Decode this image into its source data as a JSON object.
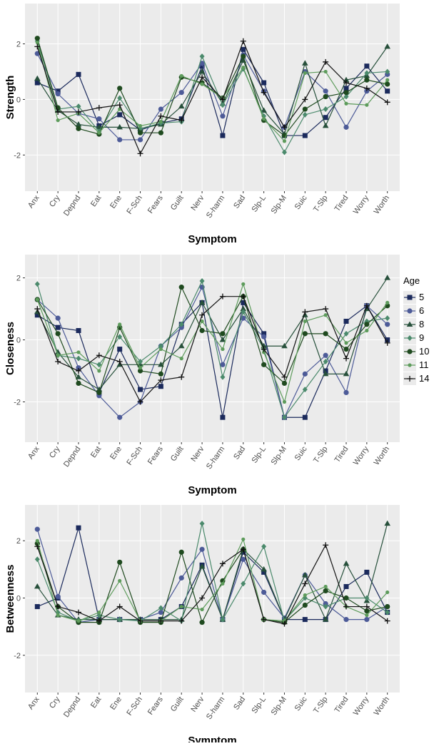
{
  "chart_data": [
    {
      "type": "line",
      "y_label": "Strength",
      "x_label": "Symptom",
      "categories": [
        "Anx",
        "Cry",
        "Depnd",
        "Eat",
        "Ene",
        "F-Sch",
        "Fears",
        "Guilt",
        "Nerv",
        "S-harm",
        "Sad",
        "Slp-L",
        "Slp-M",
        "Suic",
        "T-Slp",
        "Tired",
        "Worry",
        "Worth"
      ],
      "ylim": [
        -3.3,
        3.45
      ],
      "yticks": [
        -2,
        0,
        2
      ],
      "grid": true,
      "series": [
        {
          "color": "#1b2a5c",
          "marker": "square",
          "values": [
            0.6,
            0.3,
            0.9,
            -0.95,
            -0.55,
            -1.1,
            -0.85,
            -0.7,
            1.2,
            -1.3,
            1.8,
            0.6,
            -1.3,
            -1.3,
            -0.65,
            0.4,
            1.2,
            0.3
          ]
        },
        {
          "color": "#4d5b98",
          "marker": "circle",
          "values": [
            1.65,
            0.2,
            -0.5,
            -0.7,
            -1.45,
            -1.45,
            -0.35,
            0.25,
            1.3,
            -0.6,
            1.6,
            0.3,
            -1.0,
            1.0,
            0.3,
            -1.0,
            0.3,
            0.9
          ]
        },
        {
          "color": "#27503b",
          "marker": "triangle",
          "values": [
            0.75,
            -0.4,
            -0.9,
            -1.0,
            -1.0,
            -1.05,
            -0.9,
            -0.25,
            1.0,
            -0.15,
            1.4,
            -0.4,
            -1.25,
            1.3,
            -0.95,
            0.7,
            0.85,
            1.9
          ]
        },
        {
          "color": "#4b8a6c",
          "marker": "diamond",
          "values": [
            2.1,
            -0.35,
            -0.25,
            -1.15,
            0.05,
            -1.05,
            -0.85,
            -0.8,
            1.55,
            -0.2,
            1.1,
            -0.6,
            -1.9,
            -0.55,
            -0.35,
            0.1,
            0.95,
            1.0
          ]
        },
        {
          "color": "#1f4a1f",
          "marker": "circle",
          "values": [
            2.2,
            -0.3,
            -1.05,
            -1.25,
            0.4,
            -1.2,
            -1.2,
            0.8,
            0.6,
            0.05,
            1.55,
            -0.75,
            -1.3,
            -0.35,
            0.1,
            0.25,
            0.7,
            0.55
          ]
        },
        {
          "color": "#5e9c5c",
          "marker": "dot",
          "values": [
            2.05,
            -0.75,
            -0.5,
            -1.2,
            -0.35,
            -0.95,
            -0.8,
            0.85,
            0.55,
            0.05,
            1.15,
            -0.7,
            -1.5,
            0.95,
            1.0,
            -0.15,
            -0.2,
            0.7
          ]
        },
        {
          "color": "#111111",
          "marker": "plus",
          "values": [
            1.9,
            -0.45,
            -0.45,
            -0.3,
            -0.2,
            -1.95,
            -0.6,
            -0.75,
            0.8,
            0.0,
            2.1,
            0.25,
            -1.0,
            0.0,
            1.35,
            0.6,
            0.4,
            -0.1
          ]
        }
      ]
    },
    {
      "type": "line",
      "y_label": "Closeness",
      "x_label": "Symptom",
      "categories": [
        "Anx",
        "Cry",
        "Depnd",
        "Eat",
        "Ene",
        "F-Sch",
        "Fears",
        "Guilt",
        "Nerv",
        "S-harm",
        "Sad",
        "Slp-L",
        "Slp-M",
        "Suic",
        "T-Slp",
        "Tired",
        "Worry",
        "Worth"
      ],
      "ylim": [
        -3.3,
        2.75
      ],
      "yticks": [
        -2,
        0,
        2
      ],
      "grid": true,
      "legend_title": "Age",
      "legend": "right",
      "series": [
        {
          "name": "5",
          "color": "#1b2a5c",
          "marker": "square",
          "values": [
            0.8,
            0.4,
            0.3,
            -1.7,
            -0.3,
            -1.6,
            -1.5,
            0.5,
            1.2,
            -2.5,
            1.2,
            0.2,
            -2.5,
            -2.5,
            -1.0,
            0.6,
            1.1,
            0.0
          ]
        },
        {
          "name": "6",
          "color": "#4d5b98",
          "marker": "circle",
          "values": [
            1.3,
            0.7,
            -0.9,
            -1.8,
            -2.5,
            -2.0,
            -0.2,
            0.4,
            1.7,
            -0.8,
            0.7,
            0.1,
            -2.5,
            -1.1,
            -0.5,
            -1.7,
            1.1,
            0.5
          ]
        },
        {
          "name": "8",
          "color": "#27503b",
          "marker": "triangle",
          "values": [
            0.9,
            -0.4,
            -1.2,
            -1.6,
            -0.8,
            -0.8,
            -0.8,
            -0.2,
            1.2,
            0.0,
            1.0,
            -0.2,
            -0.2,
            0.8,
            -1.1,
            -1.1,
            1.0,
            2.0
          ]
        },
        {
          "name": "9",
          "color": "#4b8a6c",
          "marker": "diamond",
          "values": [
            1.8,
            -0.5,
            -0.6,
            -0.8,
            0.1,
            -0.7,
            -0.2,
            0.5,
            1.9,
            -1.2,
            0.9,
            -0.3,
            -2.5,
            -1.6,
            -0.7,
            0.2,
            0.6,
            0.7
          ]
        },
        {
          "name": "10",
          "color": "#1f4a1f",
          "marker": "circle",
          "values": [
            1.3,
            0.2,
            -1.4,
            -1.7,
            0.4,
            -1.0,
            -1.1,
            1.7,
            0.3,
            0.2,
            1.4,
            -0.8,
            -1.4,
            0.2,
            0.2,
            -0.3,
            0.5,
            1.1
          ]
        },
        {
          "name": "11",
          "color": "#5e9c5c",
          "marker": "dot",
          "values": [
            1.3,
            -0.5,
            -0.4,
            -1.0,
            0.5,
            -0.9,
            -0.3,
            -0.6,
            0.6,
            -0.3,
            1.8,
            -0.4,
            -2.0,
            0.6,
            0.8,
            -0.1,
            0.3,
            1.2
          ]
        },
        {
          "name": "14",
          "color": "#111111",
          "marker": "plus",
          "values": [
            1.0,
            -0.7,
            -1.0,
            -0.5,
            -0.7,
            -2.0,
            -1.3,
            -1.2,
            0.8,
            1.4,
            1.4,
            -0.3,
            -1.2,
            0.9,
            1.0,
            -0.6,
            1.1,
            -0.1
          ]
        }
      ]
    },
    {
      "type": "line",
      "y_label": "Betweenness",
      "x_label": "Symptom",
      "categories": [
        "Anx",
        "Cry",
        "Depnd",
        "Eat",
        "Ene",
        "F-Sch",
        "Fears",
        "Guilt",
        "Nerv",
        "S-harm",
        "Sad",
        "Slp-L",
        "Slp-M",
        "Suic",
        "T-Slp",
        "Tired",
        "Worry",
        "Worth"
      ],
      "ylim": [
        -3.3,
        3.25
      ],
      "yticks": [
        -2,
        0,
        2
      ],
      "grid": true,
      "series": [
        {
          "color": "#1b2a5c",
          "marker": "square",
          "values": [
            -0.3,
            0.0,
            2.45,
            -0.75,
            -0.75,
            -0.75,
            -0.75,
            -0.3,
            1.15,
            -0.75,
            1.6,
            0.9,
            -0.75,
            -0.75,
            -0.75,
            0.4,
            0.9,
            -0.5
          ]
        },
        {
          "color": "#4d5b98",
          "marker": "circle",
          "values": [
            2.4,
            0.05,
            -0.85,
            -0.75,
            -0.75,
            -0.75,
            -0.5,
            0.7,
            1.7,
            -0.75,
            1.35,
            0.2,
            -0.7,
            0.8,
            -0.2,
            -0.75,
            -0.75,
            -0.3
          ]
        },
        {
          "color": "#27503b",
          "marker": "triangle",
          "values": [
            0.4,
            -0.6,
            -0.75,
            -0.75,
            -0.75,
            -0.75,
            -0.75,
            -0.75,
            1.1,
            -0.75,
            1.7,
            1.0,
            -0.75,
            0.8,
            -0.75,
            1.2,
            -0.1,
            2.6
          ]
        },
        {
          "color": "#4b8a6c",
          "marker": "diamond",
          "values": [
            1.35,
            -0.5,
            -0.8,
            -0.6,
            -0.75,
            -0.8,
            -0.35,
            -0.8,
            2.6,
            -0.75,
            0.5,
            1.8,
            -0.8,
            0.0,
            -0.3,
            0.0,
            0.0,
            -0.5
          ]
        },
        {
          "color": "#1f4a1f",
          "marker": "circle",
          "values": [
            1.9,
            -0.3,
            -0.85,
            -0.85,
            1.25,
            -0.85,
            -0.85,
            1.6,
            -0.85,
            0.6,
            1.7,
            -0.75,
            -0.85,
            -0.25,
            0.25,
            0.0,
            -0.45,
            -0.3
          ]
        },
        {
          "color": "#5e9c5c",
          "marker": "dot",
          "values": [
            2.0,
            -0.6,
            -0.8,
            -0.5,
            0.6,
            -0.8,
            -0.8,
            -0.3,
            -0.4,
            0.5,
            2.05,
            -0.75,
            -0.8,
            0.1,
            0.4,
            -0.3,
            -0.6,
            0.2
          ]
        },
        {
          "color": "#111111",
          "marker": "plus",
          "values": [
            1.8,
            -0.3,
            -0.5,
            -0.8,
            -0.3,
            -0.8,
            -0.8,
            -0.8,
            0.0,
            1.2,
            1.7,
            -0.75,
            -0.9,
            0.5,
            1.85,
            -0.3,
            -0.3,
            -0.8
          ]
        }
      ]
    }
  ]
}
